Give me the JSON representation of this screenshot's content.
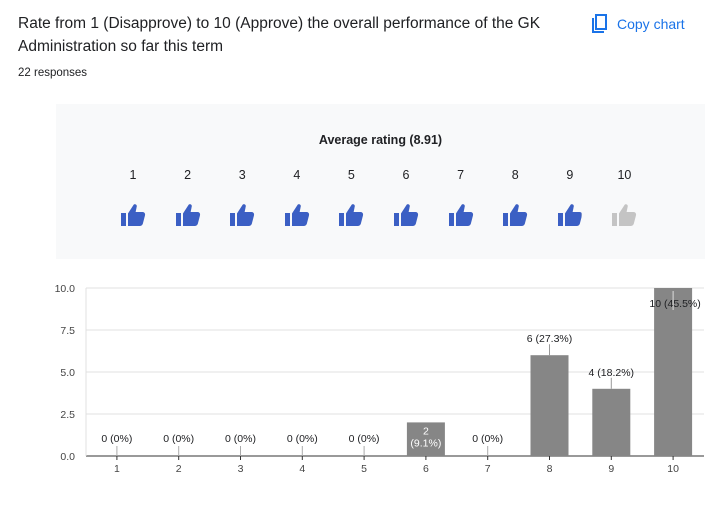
{
  "header": {
    "question": "Rate from 1 (Disapprove) to 10 (Approve) the overall performance of the GK Administration so far this term",
    "responses": "22 responses",
    "copy_label": "Copy chart",
    "accent_color": "#1a73e8"
  },
  "rating_panel": {
    "title": "Average rating (8.91)",
    "average": 8.91,
    "scale": [
      "1",
      "2",
      "3",
      "4",
      "5",
      "6",
      "7",
      "8",
      "9",
      "10"
    ],
    "icon": "thumb-up-icon",
    "filled_color": "#3b5fc4",
    "empty_color": "#c4c4c4"
  },
  "chart_data": {
    "type": "bar",
    "categories": [
      "1",
      "2",
      "3",
      "4",
      "5",
      "6",
      "7",
      "8",
      "9",
      "10"
    ],
    "values": [
      0,
      0,
      0,
      0,
      0,
      2,
      0,
      6,
      4,
      10
    ],
    "labels": [
      "0 (0%)",
      "0 (0%)",
      "0 (0%)",
      "0 (0%)",
      "0 (0%)",
      "2 (9.1%)",
      "0 (0%)",
      "6 (27.3%)",
      "4 (18.2%)",
      "10 (45.5%)"
    ],
    "yticks": [
      "0.0",
      "2.5",
      "5.0",
      "7.5",
      "10.0"
    ],
    "ylim": [
      0,
      10
    ],
    "bar_color": "#868686",
    "grid": true,
    "legend": "none"
  }
}
